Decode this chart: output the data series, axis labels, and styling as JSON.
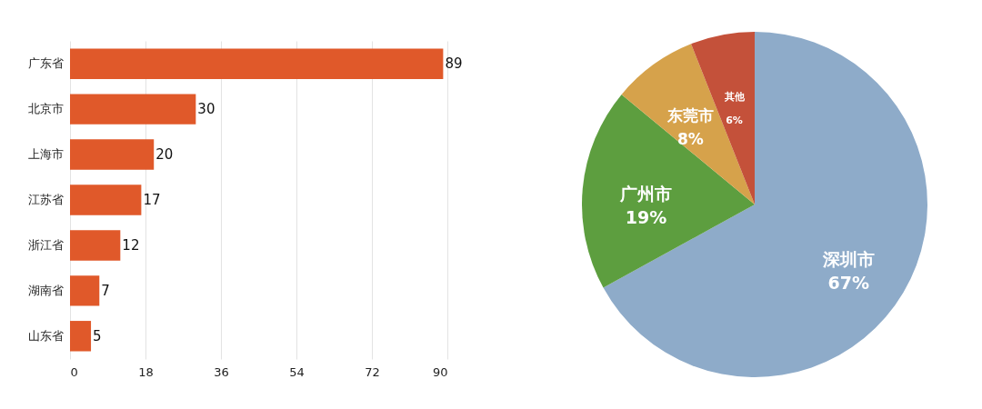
{
  "chart_data": [
    {
      "type": "bar",
      "orientation": "horizontal",
      "categories": [
        "广东省",
        "北京市",
        "上海市",
        "江苏省",
        "浙江省",
        "湖南省",
        "山东省"
      ],
      "values": [
        89,
        30,
        20,
        17,
        12,
        7,
        5
      ],
      "color": "#e0592a",
      "xlim": [
        0,
        90
      ],
      "xticks": [
        0,
        18,
        36,
        54,
        72,
        90
      ],
      "grid": "x",
      "data_labels": true
    },
    {
      "type": "pie",
      "categories": [
        "深圳市",
        "广州市",
        "东莞市",
        "其他"
      ],
      "values": [
        67,
        19,
        8,
        6
      ],
      "value_labels": [
        "67%",
        "19%",
        "8%",
        "6%"
      ],
      "colors": [
        "#8eabc9",
        "#5d9e3f",
        "#d6a24b",
        "#c4513a"
      ]
    }
  ]
}
